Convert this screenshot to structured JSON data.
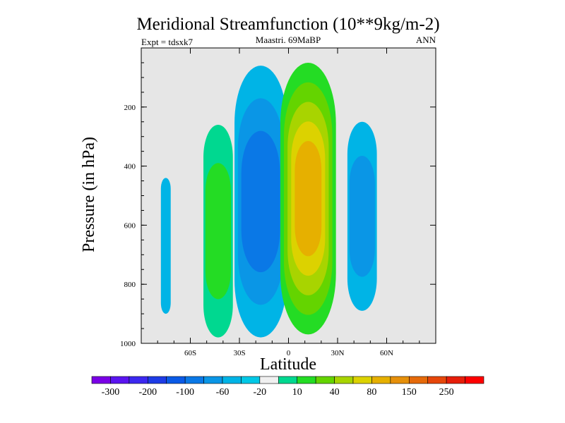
{
  "chart_data": {
    "type": "heatmap",
    "title": "Meridional Streamfunction (10**9kg/m-2)",
    "subtitle_left": "Expt = tdsxk7",
    "subtitle_center": "Maastri.  69MaBP",
    "subtitle_right": "ANN",
    "xlabel": "Latitude",
    "ylabel": "Pressure (in hPa)",
    "xlim": [
      -90,
      90
    ],
    "ylim": [
      0,
      1000
    ],
    "y_inverted": true,
    "x_ticks": [
      {
        "value": -60,
        "label": "60S"
      },
      {
        "value": -30,
        "label": "30S"
      },
      {
        "value": 0,
        "label": "0"
      },
      {
        "value": 30,
        "label": "30N"
      },
      {
        "value": 60,
        "label": "60N"
      }
    ],
    "y_ticks": [
      {
        "value": 200,
        "label": "200"
      },
      {
        "value": 400,
        "label": "400"
      },
      {
        "value": 600,
        "label": "600"
      },
      {
        "value": 800,
        "label": "800"
      },
      {
        "value": 1000,
        "label": "1000"
      }
    ],
    "background_color": "#e6e6e6",
    "colorbar": {
      "colors": [
        "#7a00e6",
        "#5a14f0",
        "#3c28f0",
        "#1e3ce6",
        "#0a5ae6",
        "#0a78e6",
        "#0a96e6",
        "#00b4e6",
        "#00c8e6",
        "#f0f0f0",
        "#00d890",
        "#24dc24",
        "#64d400",
        "#a8d400",
        "#dcd200",
        "#e6b000",
        "#e6900a",
        "#e66a0a",
        "#e6460a",
        "#e61e0a",
        "#ff0000"
      ],
      "labels": [
        {
          "after_index": 0,
          "text": "-300"
        },
        {
          "after_index": 2,
          "text": "-200"
        },
        {
          "after_index": 4,
          "text": "-100"
        },
        {
          "after_index": 6,
          "text": "-60"
        },
        {
          "after_index": 8,
          "text": "-20"
        },
        {
          "after_index": 10,
          "text": "10"
        },
        {
          "after_index": 12,
          "text": "40"
        },
        {
          "after_index": 14,
          "text": "80"
        },
        {
          "after_index": 16,
          "text": "150"
        },
        {
          "after_index": 18,
          "text": "250"
        }
      ]
    },
    "cells": [
      {
        "name": "southern-polar-cell",
        "center_lat": -75,
        "center_p": 670,
        "half_width_lat": 3,
        "half_height_p": 230,
        "levels": [
          "#00b4e6"
        ]
      },
      {
        "name": "southern-ferrel-cell",
        "center_lat": -43,
        "center_p": 620,
        "half_width_lat": 9,
        "half_height_p": 360,
        "levels": [
          "#00d890",
          "#24dc24"
        ]
      },
      {
        "name": "southern-hadley-cell",
        "center_lat": -17,
        "center_p": 520,
        "half_width_lat": 16,
        "half_height_p": 460,
        "levels": [
          "#00b4e6",
          "#0a96e6",
          "#0a78e6"
        ]
      },
      {
        "name": "northern-hadley-cell",
        "center_lat": 12,
        "center_p": 510,
        "half_width_lat": 17,
        "half_height_p": 460,
        "levels": [
          "#24dc24",
          "#64d400",
          "#a8d400",
          "#dcd200",
          "#e6b000"
        ]
      },
      {
        "name": "northern-ferrel-cell",
        "center_lat": 45,
        "center_p": 570,
        "half_width_lat": 9,
        "half_height_p": 320,
        "levels": [
          "#00b4e6",
          "#0a96e6"
        ]
      }
    ]
  }
}
